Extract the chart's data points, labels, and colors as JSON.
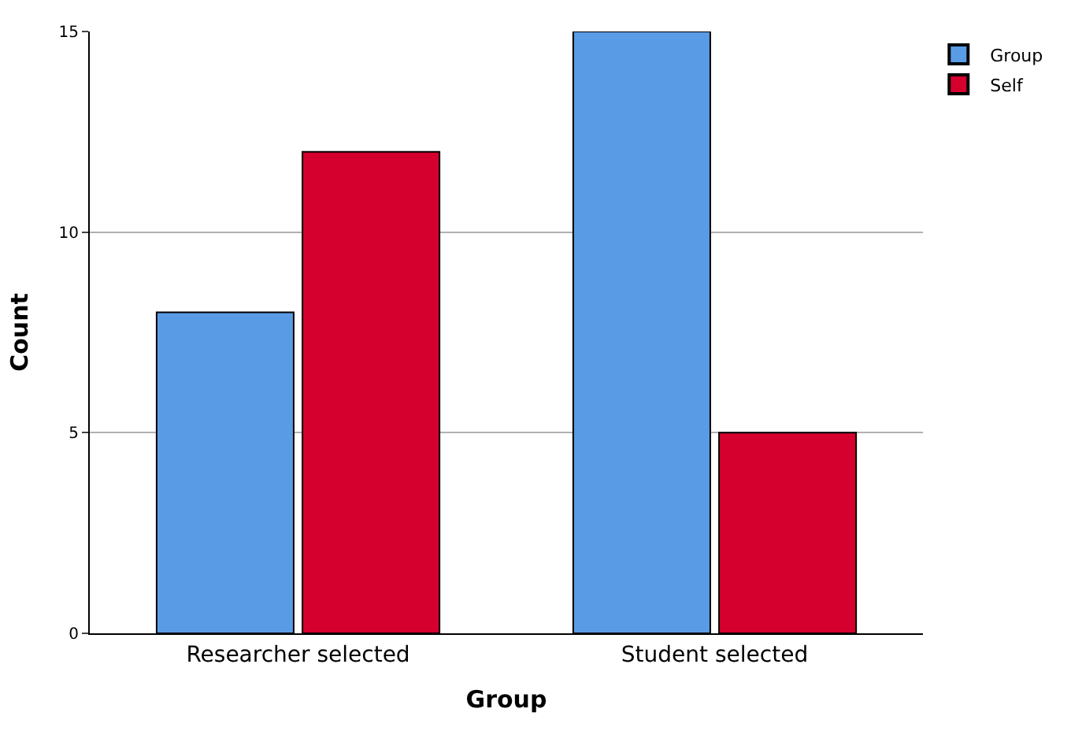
{
  "chart_data": {
    "type": "bar",
    "xlabel": "Group",
    "ylabel": "Count",
    "categories": [
      "Researcher selected",
      "Student selected"
    ],
    "series": [
      {
        "name": "Group",
        "color": "#5a9be6",
        "values": [
          8,
          15
        ]
      },
      {
        "name": "Self",
        "color": "#d5002e",
        "values": [
          12,
          5
        ]
      }
    ],
    "ylim": [
      0,
      15
    ],
    "yticks": [
      0,
      5,
      10,
      15
    ],
    "grid": "y",
    "legend": "top right"
  }
}
